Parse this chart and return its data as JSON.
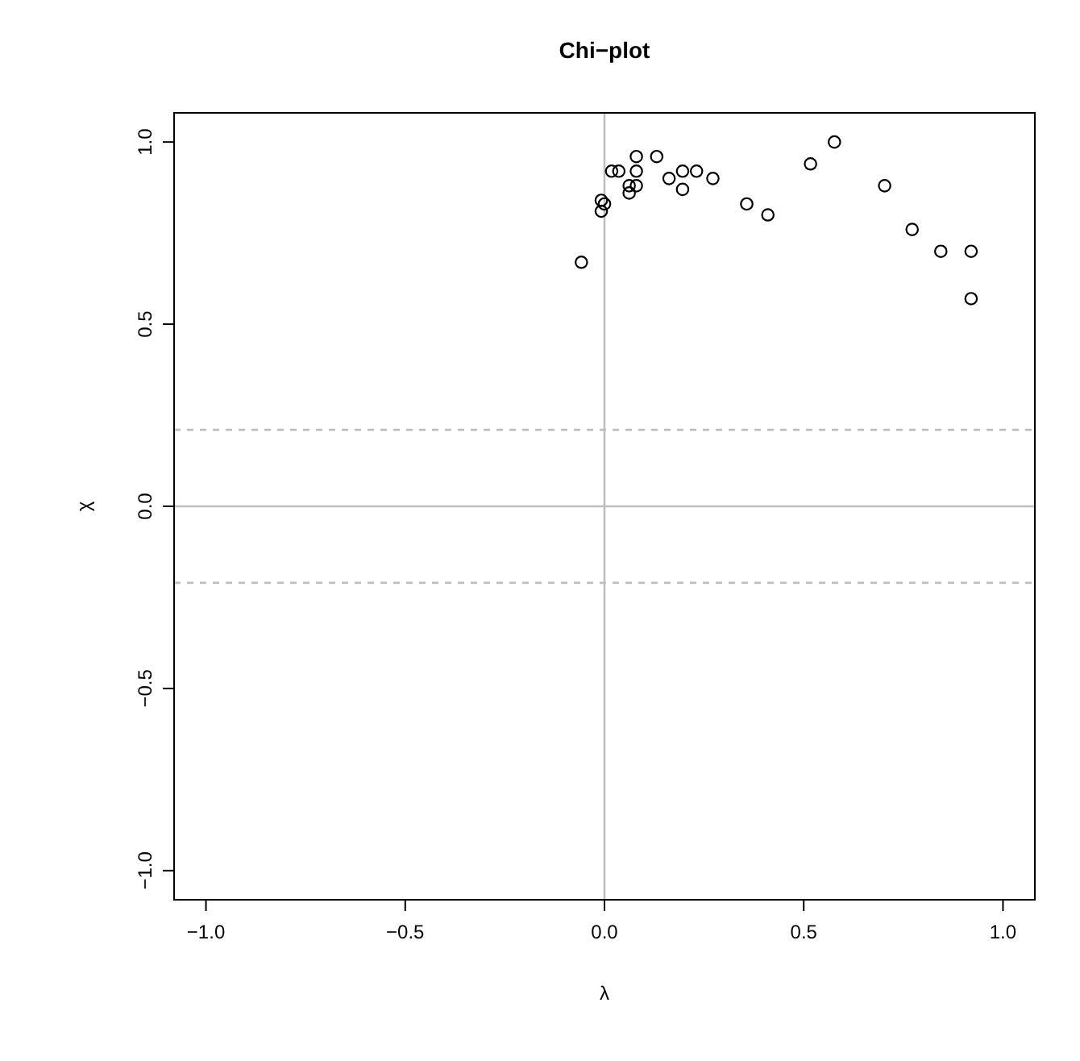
{
  "chart_data": {
    "type": "scatter",
    "title": "Chi−plot",
    "xlabel": "λ",
    "ylabel": "χ",
    "x": [
      -0.058,
      -0.008,
      -0.008,
      0,
      0.018,
      0.036,
      0.062,
      0.062,
      0.08,
      0.08,
      0.08,
      0.131,
      0.162,
      0.196,
      0.196,
      0.231,
      0.272,
      0.357,
      0.41,
      0.517,
      0.577,
      0.703,
      0.772,
      0.844,
      0.92,
      0.92
    ],
    "series": [
      {
        "color": "#000000",
        "values": [
          0.67,
          0.84,
          0.81,
          0.83,
          0.92,
          0.92,
          0.88,
          0.86,
          0.96,
          0.92,
          0.88,
          0.96,
          0.9,
          0.92,
          0.87,
          0.92,
          0.9,
          0.83,
          0.8,
          0.94,
          1.0,
          0.88,
          0.76,
          0.7,
          0.7,
          0.57
        ]
      }
    ],
    "xlim": [
      -1.08,
      1.08
    ],
    "ylim": [
      -1.08,
      1.08
    ],
    "xticks": [
      {
        "value": -1,
        "label": "−1.0"
      },
      {
        "value": -0.5,
        "label": "−0.5"
      },
      {
        "value": 0,
        "label": "0.0"
      },
      {
        "value": 0.5,
        "label": "0.5"
      },
      {
        "value": 1,
        "label": "1.0"
      }
    ],
    "yticks": [
      {
        "value": -1,
        "label": "−1.0"
      },
      {
        "value": -0.5,
        "label": "−0.5"
      },
      {
        "value": 0,
        "label": "0.0"
      },
      {
        "value": 0.5,
        "label": "0.5"
      },
      {
        "value": 1,
        "label": "1.0"
      }
    ],
    "ref_lines": [
      {
        "axis": "x",
        "value": 0,
        "color": "#bebebe",
        "line_style": "solid"
      },
      {
        "axis": "y",
        "value": 0,
        "color": "#bebebe",
        "line_style": "solid"
      },
      {
        "axis": "y",
        "value": 0.21,
        "color": "#bebebe",
        "line_style": "dashed"
      },
      {
        "axis": "y",
        "value": -0.21,
        "color": "#bebebe",
        "line_style": "dashed"
      }
    ],
    "marker": "circle",
    "grid": false
  }
}
